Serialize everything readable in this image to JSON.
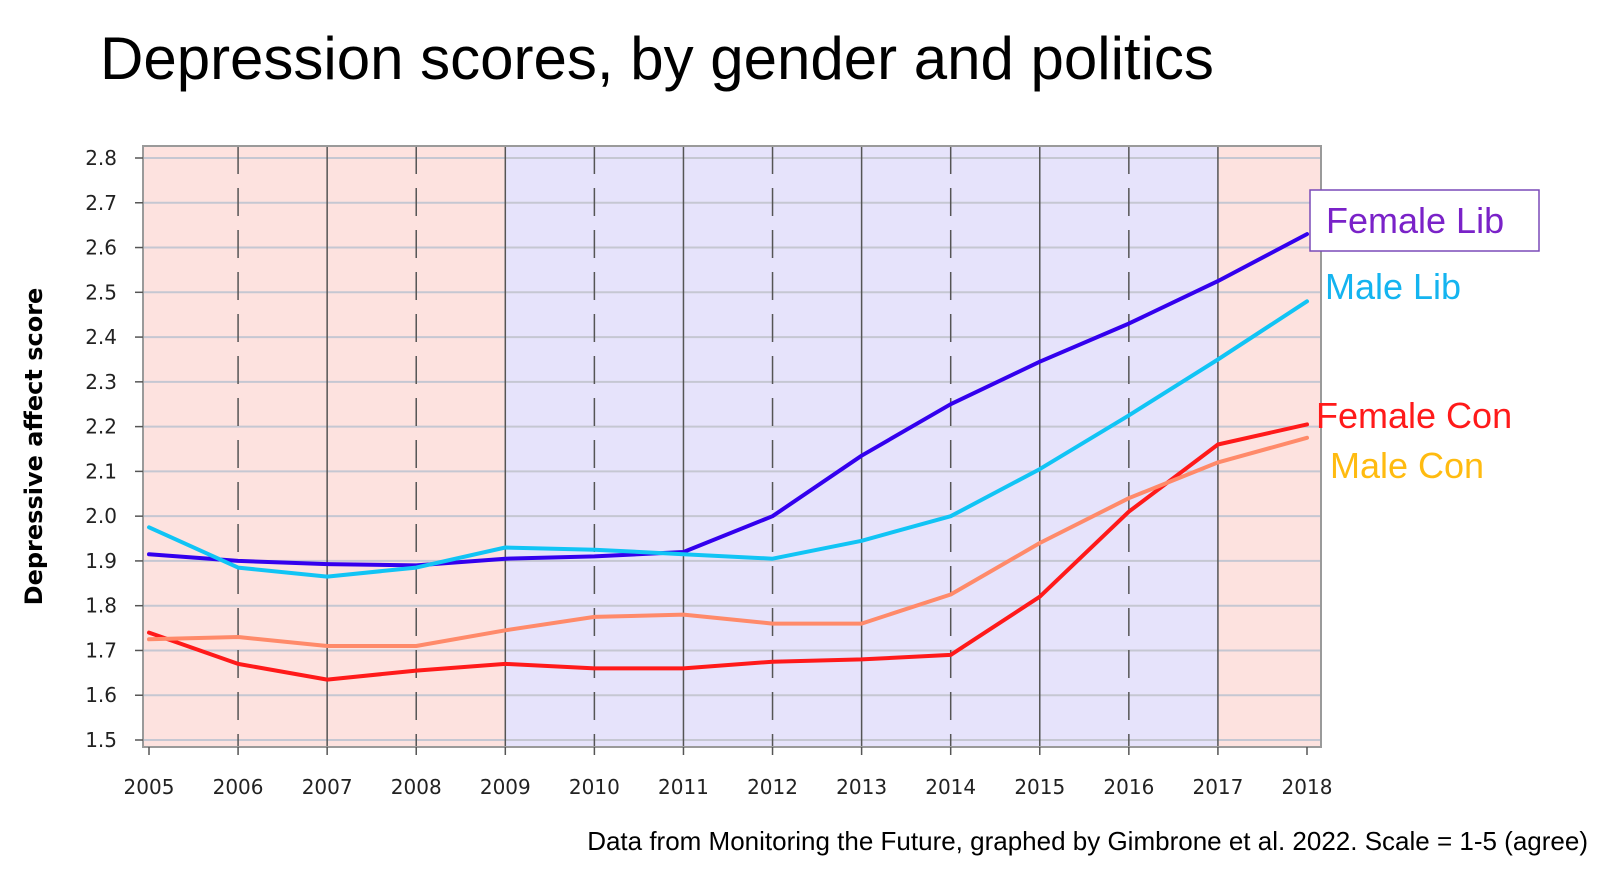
{
  "title": "Depression scores, by gender and politics",
  "source_note": "Data from Monitoring the Future, graphed by Gimbrone et al. 2022. Scale = 1-5 (agree)",
  "colors": {
    "female_lib": "#3300ee",
    "male_lib": "#11c4f5",
    "female_con": "#ff1a1a",
    "male_con": "#ff8a6a",
    "label_female_lib": "#7a22c8",
    "label_male_lib": "#14b4f0",
    "label_female_con": "#ff1a1a",
    "label_male_con": "#ffbb10",
    "band_pink": "#fde2df",
    "band_lavender": "#e6e3fb",
    "grid": "#c5c7d2",
    "vline": "#555555",
    "frame": "#9a9a9a",
    "label_box": "#7a4ab8"
  },
  "chart_data": {
    "type": "line",
    "ylabel": "Depressive affect score",
    "xlabel": "",
    "x": [
      2005,
      2006,
      2007,
      2008,
      2009,
      2010,
      2011,
      2012,
      2013,
      2014,
      2015,
      2016,
      2017,
      2018
    ],
    "xlim": [
      2005,
      2018
    ],
    "ylim": [
      1.5,
      2.8
    ],
    "yticks": [
      "1.5",
      "1.6",
      "1.7",
      "1.8",
      "1.9",
      "2.0",
      "2.1",
      "2.2",
      "2.3",
      "2.4",
      "2.5",
      "2.6",
      "2.7",
      "2.8"
    ],
    "grid": true,
    "legend": "direct labels at right end of lines",
    "background_bands": [
      {
        "from": 2005,
        "to": 2009,
        "color": "pink"
      },
      {
        "from": 2009,
        "to": 2017,
        "color": "lavender"
      },
      {
        "from": 2017,
        "to": 2018,
        "color": "pink"
      }
    ],
    "series": [
      {
        "name": "Female Lib",
        "color_key": "female_lib",
        "label_color_key": "label_female_lib",
        "boxed": true,
        "values": [
          1.915,
          1.9,
          1.893,
          1.89,
          1.905,
          1.91,
          1.92,
          2.0,
          2.135,
          2.25,
          2.345,
          2.43,
          2.525,
          2.63
        ]
      },
      {
        "name": "Male Lib",
        "color_key": "male_lib",
        "label_color_key": "label_male_lib",
        "boxed": false,
        "values": [
          1.975,
          1.885,
          1.865,
          1.885,
          1.93,
          1.925,
          1.915,
          1.905,
          1.945,
          2.0,
          2.105,
          2.225,
          2.35,
          2.48
        ]
      },
      {
        "name": "Female Con",
        "color_key": "female_con",
        "label_color_key": "label_female_con",
        "boxed": false,
        "values": [
          1.74,
          1.67,
          1.635,
          1.655,
          1.67,
          1.66,
          1.66,
          1.675,
          1.68,
          1.69,
          1.82,
          2.01,
          2.16,
          2.205
        ]
      },
      {
        "name": "Male Con",
        "color_key": "male_con",
        "label_color_key": "label_male_con",
        "boxed": false,
        "values": [
          1.725,
          1.73,
          1.71,
          1.71,
          1.745,
          1.775,
          1.78,
          1.76,
          1.76,
          1.825,
          1.94,
          2.04,
          2.12,
          2.175
        ]
      }
    ]
  }
}
